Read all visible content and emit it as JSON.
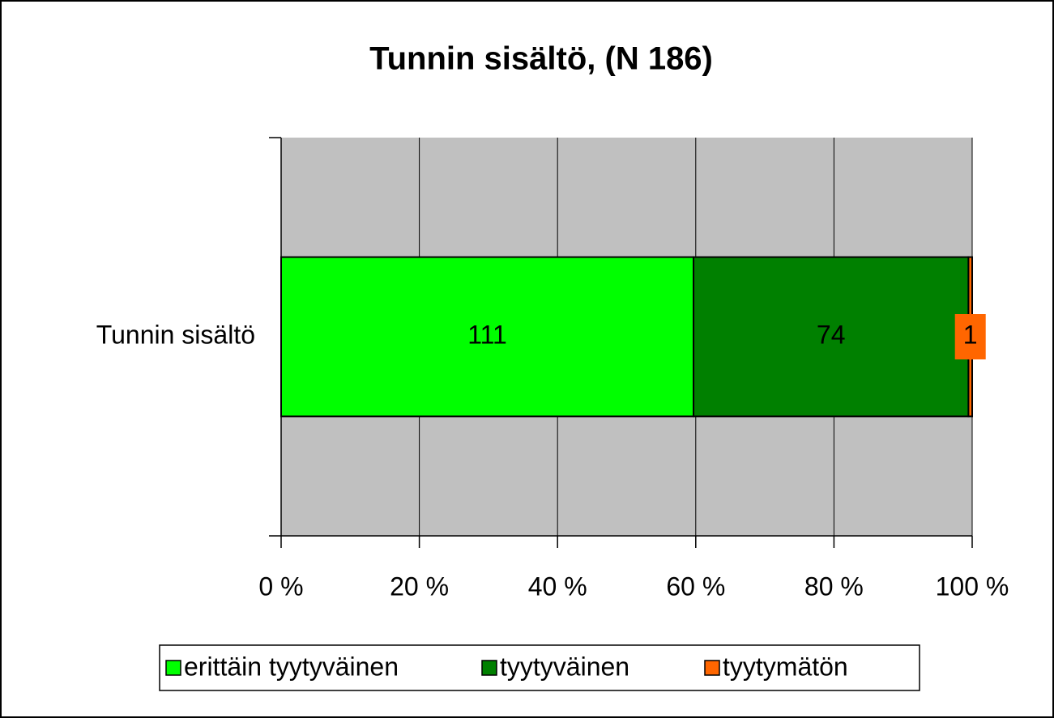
{
  "chart_data": {
    "type": "bar",
    "orientation": "horizontal",
    "stacking": "percent",
    "title": "Tunnin sisältö, (N 186)",
    "categories": [
      "Tunnin sisältö"
    ],
    "series": [
      {
        "name": "erittäin tyytyväinen",
        "color": "#00ff00",
        "values": [
          111
        ]
      },
      {
        "name": "tyytyväinen",
        "color": "#008000",
        "values": [
          74
        ]
      },
      {
        "name": "tyytymätön",
        "color": "#ff6600",
        "values": [
          1
        ]
      }
    ],
    "xlim": [
      0,
      100
    ],
    "xticks": [
      {
        "value": 0,
        "label": "0 %"
      },
      {
        "value": 20,
        "label": "20 %"
      },
      {
        "value": 40,
        "label": "40 %"
      },
      {
        "value": 60,
        "label": "60 %"
      },
      {
        "value": 80,
        "label": "80 %"
      },
      {
        "value": 100,
        "label": "100 %"
      }
    ],
    "grid": true,
    "legend": "bottom"
  }
}
